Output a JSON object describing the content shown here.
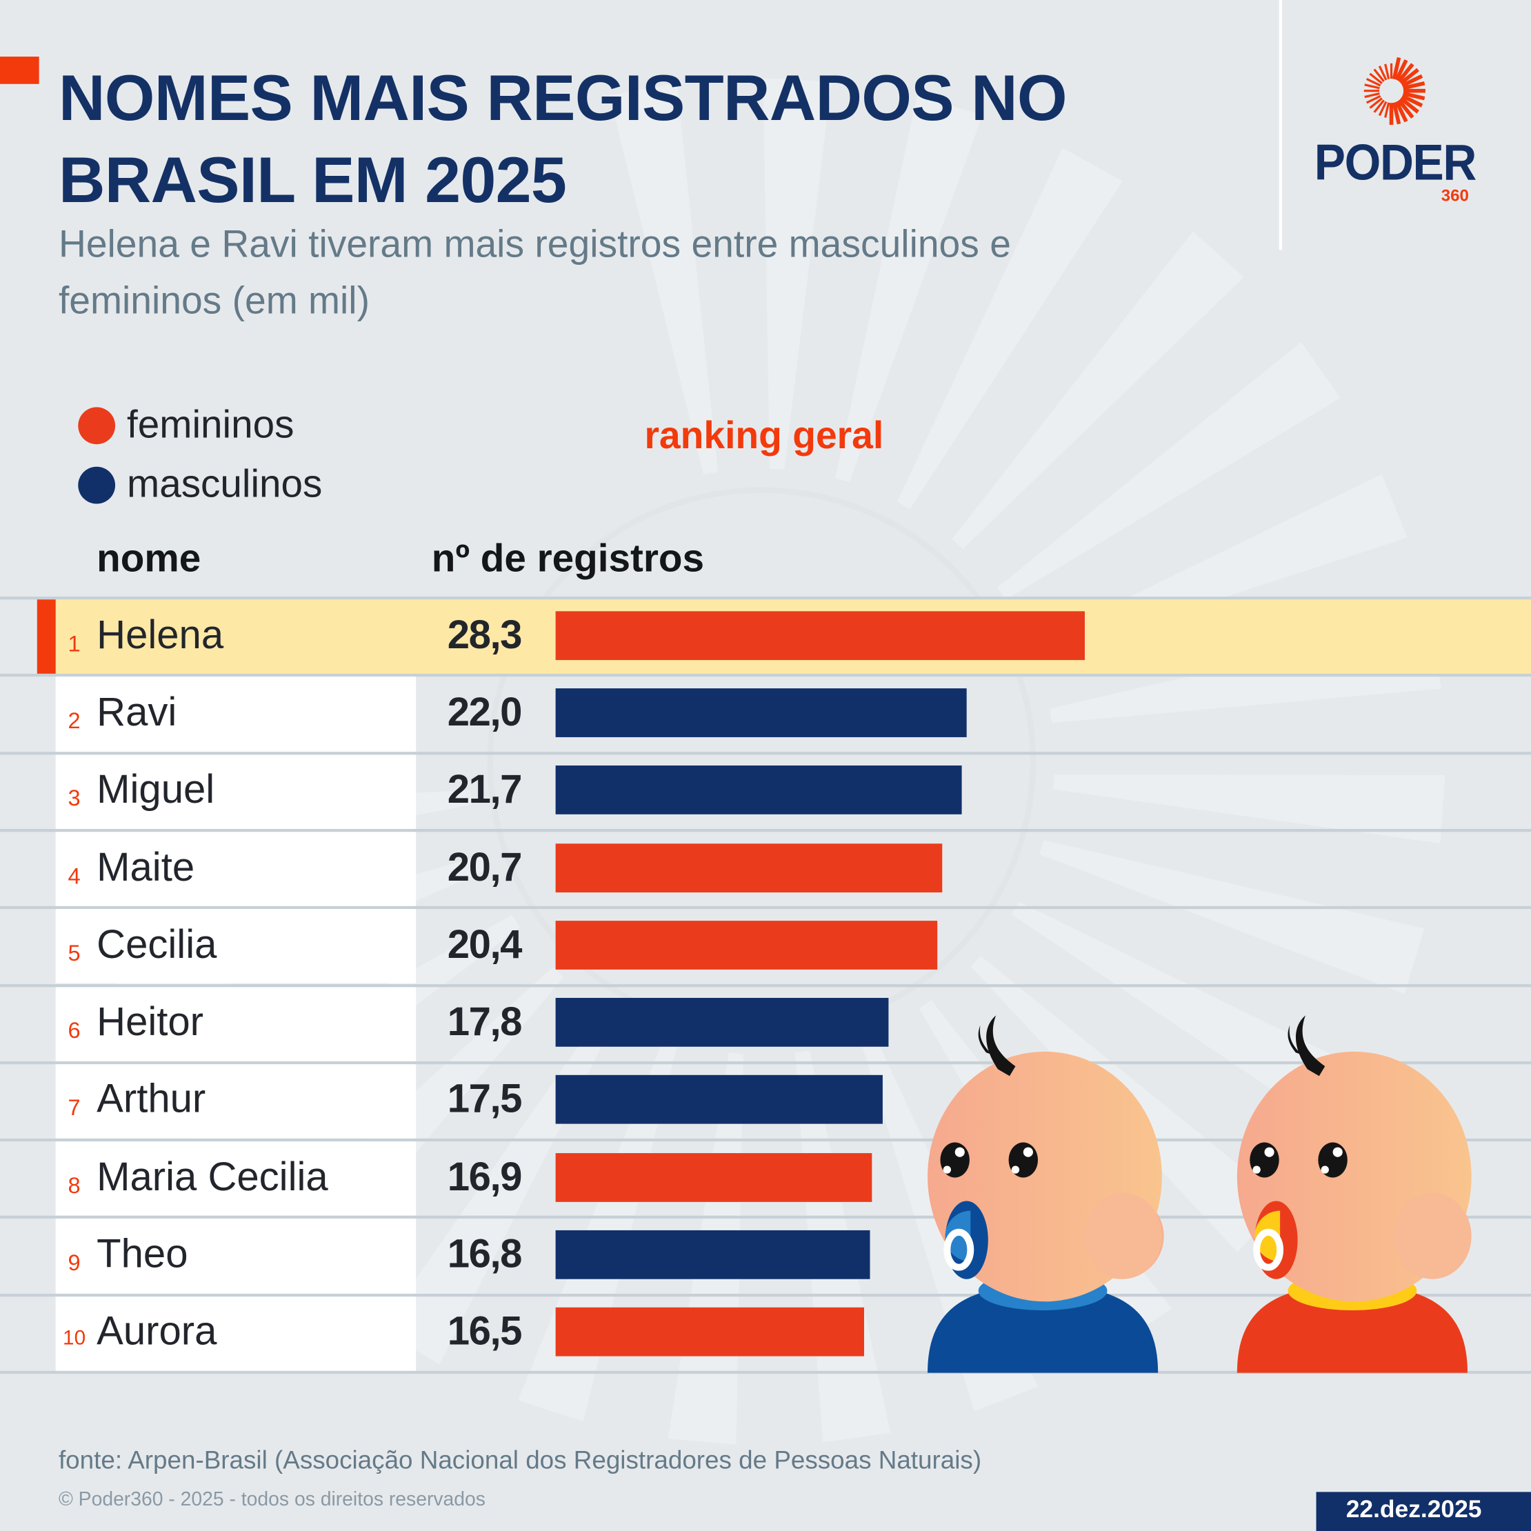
{
  "header": {
    "title_line1": "NOMES MAIS REGISTRADOS NO",
    "title_line2": "BRASIL EM 2025",
    "subtitle_line1": "Helena e Ravi tiveram mais registros entre masculinos e",
    "subtitle_line2": "femininos (em mil)"
  },
  "logo": {
    "word": "PODER",
    "number": "360",
    "icon": "sunburst-logo-icon"
  },
  "legend": {
    "items": [
      {
        "label": "femininos",
        "color": "#ea3c1c"
      },
      {
        "label": "masculinos",
        "color": "#11306a"
      }
    ]
  },
  "ranking_label": "ranking geral",
  "columns": {
    "name": "nome",
    "value": "nº de registros"
  },
  "colors": {
    "female": "#ea3c1c",
    "male": "#11306a",
    "highlight": "#fee8a6",
    "accent": "#f23a0c",
    "title": "#143166"
  },
  "chart_data": {
    "type": "bar",
    "orientation": "horizontal",
    "title": "NOMES MAIS REGISTRADOS NO BRASIL EM 2025",
    "subtitle": "Helena e Ravi tiveram mais registros entre masculinos e femininos (em mil)",
    "xlabel": "nº de registros",
    "ylabel": "nome",
    "unit": "mil",
    "xlim": [
      0,
      28.3
    ],
    "grid": false,
    "legend": "top-left",
    "categories": [
      "Helena",
      "Ravi",
      "Miguel",
      "Maite",
      "Cecilia",
      "Heitor",
      "Arthur",
      "Maria Cecilia",
      "Theo",
      "Aurora"
    ],
    "ranks": [
      "1",
      "2",
      "3",
      "4",
      "5",
      "6",
      "7",
      "8",
      "9",
      "10"
    ],
    "values": [
      28.3,
      22.0,
      21.7,
      20.7,
      20.4,
      17.8,
      17.5,
      16.9,
      16.8,
      16.5
    ],
    "value_labels": [
      "28,3",
      "22,0",
      "21,7",
      "20,7",
      "20,4",
      "17,8",
      "17,5",
      "16,9",
      "16,8",
      "16,5"
    ],
    "genders": [
      "femininos",
      "masculinos",
      "masculinos",
      "femininos",
      "femininos",
      "masculinos",
      "masculinos",
      "femininos",
      "masculinos",
      "femininos"
    ],
    "highlighted": "Helena"
  },
  "footer": {
    "source": "fonte: Arpen-Brasil (Associação Nacional dos Registradores de Pessoas Naturais)",
    "copyright": "© Poder360 - 2025 - todos os direitos reservados",
    "date": "22.dez.2025"
  }
}
